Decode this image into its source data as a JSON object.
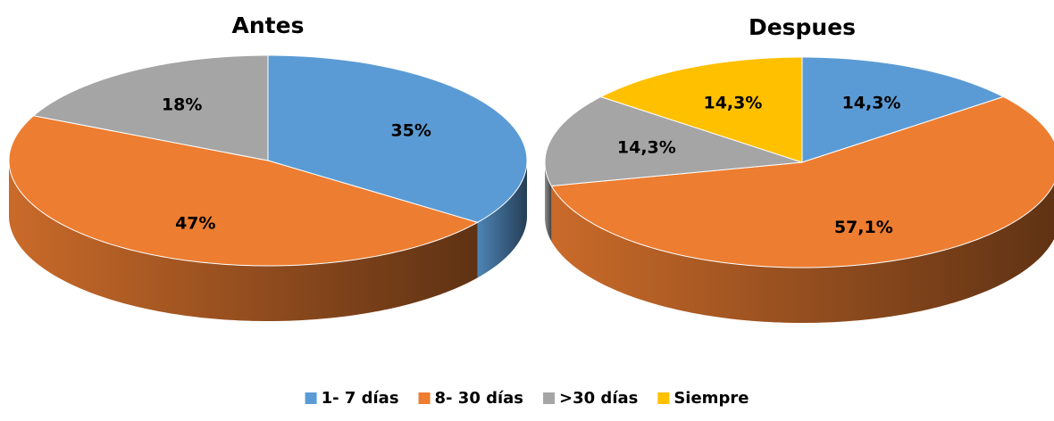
{
  "chart_data": [
    {
      "type": "pie",
      "title": "Antes",
      "categories": [
        "1- 7 días",
        "8- 30 días",
        ">30 días"
      ],
      "values": [
        35,
        47,
        18
      ],
      "value_labels": [
        "35%",
        "47%",
        "18%"
      ],
      "colors": [
        "#5b9bd5",
        "#ed7d31",
        "#a5a5a5"
      ]
    },
    {
      "type": "pie",
      "title": "Despues",
      "categories": [
        "1- 7 días",
        "8- 30 días",
        ">30 días",
        "Siempre"
      ],
      "values": [
        14.3,
        57.1,
        14.3,
        14.3
      ],
      "value_labels": [
        "14,3%",
        "57,1%",
        "14,3%",
        "14,3%"
      ],
      "colors": [
        "#5b9bd5",
        "#ed7d31",
        "#a5a5a5",
        "#ffc000"
      ]
    }
  ]
}
